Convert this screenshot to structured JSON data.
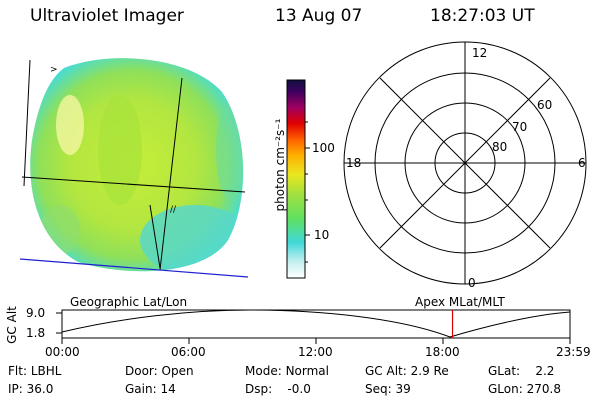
{
  "header": {
    "instrument": "Ultraviolet Imager",
    "date": "13 Aug 07",
    "time": "18:27:03 UT"
  },
  "colorbar": {
    "unit_label": "photon cm⁻²s⁻¹",
    "ticks": [
      "100",
      "10"
    ]
  },
  "polar_plot": {
    "mlt_labels": {
      "top": "12",
      "left": "18",
      "right": "6",
      "bottom": "0"
    },
    "lat_labels": [
      "60",
      "70",
      "80"
    ]
  },
  "footer_labels": {
    "left": "Geographic Lat/Lon",
    "right": "Apex MLat/MLT"
  },
  "altitude_plot": {
    "axis_label": "GC Alt",
    "y_ticks": [
      "9.0",
      "1.8"
    ],
    "time_ticks": [
      "00:00",
      "06:00",
      "12:00",
      "18:00",
      "23:59"
    ],
    "current_time_marker_hours": 18.45
  },
  "status": {
    "row1": [
      {
        "label": "Flt:",
        "value": "LBHL"
      },
      {
        "label": "Door:",
        "value": "Open"
      },
      {
        "label": "Mode:",
        "value": "Normal"
      },
      {
        "label": "GC Alt:",
        "value": "2.9 Re"
      },
      {
        "label": "GLat:",
        "value": "2.2"
      }
    ],
    "row2": [
      {
        "label": "IP:",
        "value": "36.0"
      },
      {
        "label": "Gain:",
        "value": "14"
      },
      {
        "label": "Dsp:",
        "value": "-0.0"
      },
      {
        "label": "Seq:",
        "value": "39"
      },
      {
        "label": "GLon:",
        "value": "270.8"
      }
    ]
  },
  "colors": {
    "disk_base": "#b8e83a",
    "disk_edge": "#40dfe0",
    "marker": "#dd0000"
  }
}
